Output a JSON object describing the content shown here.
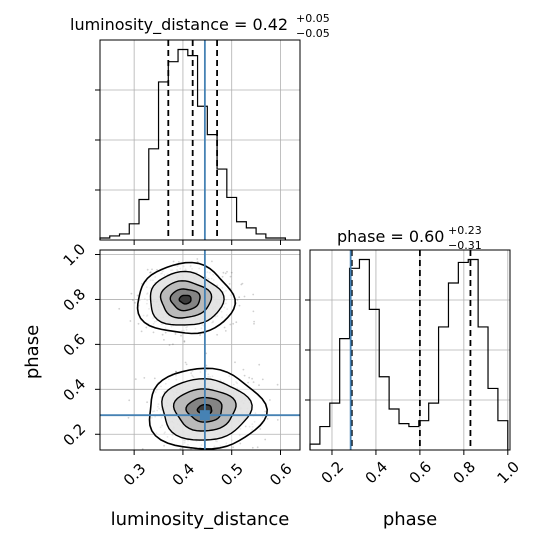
{
  "figure": {
    "title_distance": {
      "prefix": "luminosity_distance = 0.42",
      "plus": "+0.05",
      "minus": "−0.05"
    },
    "title_phase": {
      "prefix": "phase = 0.60",
      "plus": "+0.23",
      "minus": "−0.31"
    }
  },
  "colors": {
    "truth": "#4682b4",
    "hist": "#000000",
    "grid": "#b0b0b0",
    "points": "#555555"
  },
  "chart_data": [
    {
      "type": "histogram",
      "parameter": "luminosity_distance",
      "xlim": [
        0.23,
        0.64
      ],
      "bins": [
        0.23,
        0.25,
        0.27,
        0.29,
        0.31,
        0.33,
        0.35,
        0.37,
        0.39,
        0.41,
        0.43,
        0.45,
        0.47,
        0.49,
        0.51,
        0.53,
        0.55,
        0.57,
        0.59,
        0.61
      ],
      "counts": [
        1,
        2,
        3,
        8,
        20,
        45,
        78,
        88,
        94,
        91,
        66,
        52,
        35,
        21,
        9,
        6,
        3,
        1,
        1
      ],
      "quantiles": [
        0.37,
        0.42,
        0.47
      ],
      "truth": 0.445
    },
    {
      "type": "histogram",
      "parameter": "phase",
      "xlabel": "phase",
      "xlim": [
        0.1,
        1.01
      ],
      "xticks": [
        "0.2",
        "0.4",
        "0.6",
        "0.8",
        "1.0"
      ],
      "xtick_values": [
        0.2,
        0.4,
        0.6,
        0.8,
        1.0
      ],
      "bins": [
        0.1,
        0.145,
        0.19,
        0.235,
        0.28,
        0.325,
        0.37,
        0.415,
        0.46,
        0.505,
        0.55,
        0.595,
        0.64,
        0.685,
        0.73,
        0.775,
        0.82,
        0.865,
        0.91,
        0.955,
        1.0
      ],
      "counts": [
        2,
        8,
        16,
        38,
        62,
        65,
        48,
        25,
        14,
        9,
        8,
        10,
        16,
        42,
        57,
        64,
        65,
        42,
        21,
        10
      ],
      "quantiles": [
        0.29,
        0.6,
        0.83
      ],
      "truth": 0.285
    },
    {
      "type": "scatter",
      "subtype": "2d-density-contour",
      "xlabel": "luminosity_distance",
      "ylabel": "phase",
      "xlim": [
        0.23,
        0.64
      ],
      "ylim": [
        0.13,
        1.02
      ],
      "xticks": [
        "0.3",
        "0.4",
        "0.5",
        "0.6"
      ],
      "xtick_values": [
        0.3,
        0.4,
        0.5,
        0.6
      ],
      "yticks": [
        "0.2",
        "0.4",
        "0.6",
        "0.8",
        "1.0"
      ],
      "ytick_values": [
        0.2,
        0.4,
        0.6,
        0.8,
        1.0
      ],
      "modes": [
        {
          "x": 0.405,
          "y": 0.8,
          "sx": 0.043,
          "sy": 0.068
        },
        {
          "x": 0.445,
          "y": 0.31,
          "sx": 0.052,
          "sy": 0.078
        }
      ],
      "truth": {
        "x": 0.445,
        "y": 0.285
      }
    }
  ]
}
